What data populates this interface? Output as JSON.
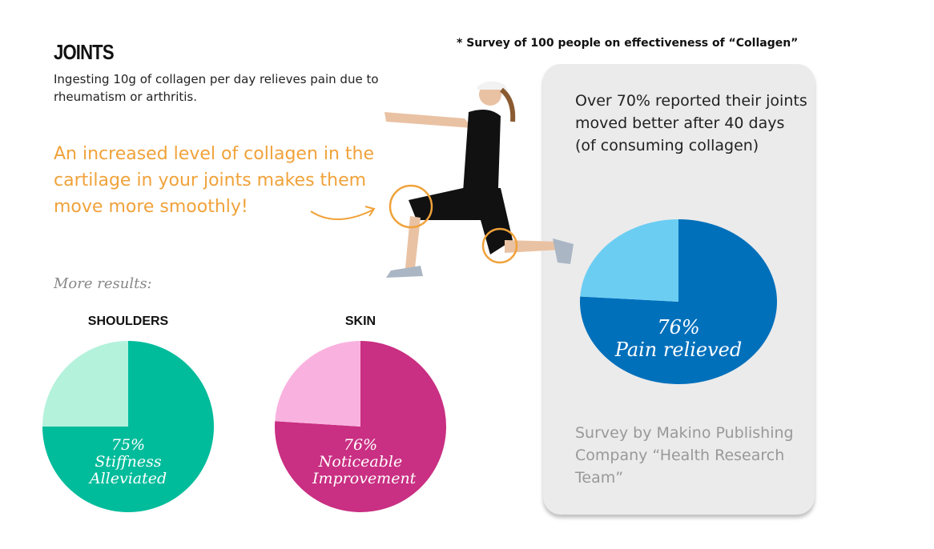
{
  "header": {
    "title": "JOINTS",
    "intro": "Ingesting 10g of collagen per day relieves pain due to rheumatism or arthritis.",
    "highlight": "An increased level of collagen in the cartilage in your joints makes them move more smoothly!",
    "survey_note": "* Survey of 100 people on effectiveness of “Collagen”",
    "more_results": "More results:"
  },
  "panel": {
    "text": "Over 70% reported their joints moved better after 40 days (of consuming collagen)",
    "source": "Survey by Makino Publishing Company “Health Research Team”"
  },
  "colors": {
    "accent": "#f0a23a"
  },
  "chart_data": [
    {
      "type": "pie",
      "title": "",
      "values": [
        76,
        24
      ],
      "label_value": "76%",
      "label_text": "Pain relieved",
      "colors": [
        "#0070bb",
        "#6ccdf3"
      ]
    },
    {
      "type": "pie",
      "title": "SHOULDERS",
      "values": [
        75,
        25
      ],
      "label_value": "75%",
      "label_text": "Stiffness Alleviated",
      "colors": [
        "#00bc9b",
        "#b4f2dc"
      ]
    },
    {
      "type": "pie",
      "title": "SKIN",
      "values": [
        76,
        24
      ],
      "label_value": "76%",
      "label_text": "Noticeable Improvement",
      "colors": [
        "#c92f82",
        "#f9b2df"
      ]
    }
  ]
}
